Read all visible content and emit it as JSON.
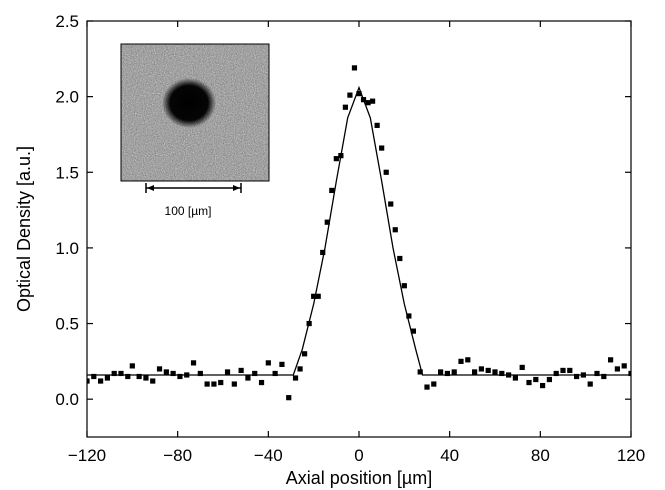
{
  "chart_data": {
    "type": "scatter",
    "title": "",
    "xlabel": "Axial position [µm]",
    "ylabel": "Optical Density [a.u.]",
    "xlim": [
      -120,
      120
    ],
    "ylim": [
      -0.25,
      2.5
    ],
    "x_ticks": [
      -120,
      -80,
      -40,
      0,
      40,
      80,
      120
    ],
    "x_tick_labels": [
      "−120",
      "−80",
      "−40",
      "0",
      "40",
      "80",
      "120"
    ],
    "y_ticks": [
      0.0,
      0.5,
      1.0,
      1.5,
      2.0,
      2.5
    ],
    "y_tick_labels": [
      "0.0",
      "0.5",
      "1.0",
      "1.5",
      "2.0",
      "2.5"
    ],
    "grid": false,
    "legend": "none",
    "series": [
      {
        "type": "scatter",
        "marker": "square",
        "color": "#000000",
        "points": [
          [
            -120,
            0.12
          ],
          [
            -117,
            0.15
          ],
          [
            -114,
            0.12
          ],
          [
            -111,
            0.14
          ],
          [
            -108,
            0.17
          ],
          [
            -105,
            0.17
          ],
          [
            -102,
            0.15
          ],
          [
            -100,
            0.22
          ],
          [
            -97,
            0.15
          ],
          [
            -94,
            0.14
          ],
          [
            -91,
            0.12
          ],
          [
            -88,
            0.2
          ],
          [
            -85,
            0.18
          ],
          [
            -82,
            0.17
          ],
          [
            -79,
            0.15
          ],
          [
            -76,
            0.16
          ],
          [
            -73,
            0.24
          ],
          [
            -70,
            0.17
          ],
          [
            -67,
            0.1
          ],
          [
            -64,
            0.1
          ],
          [
            -61,
            0.11
          ],
          [
            -58,
            0.18
          ],
          [
            -55,
            0.1
          ],
          [
            -52,
            0.19
          ],
          [
            -49,
            0.14
          ],
          [
            -46,
            0.17
          ],
          [
            -43,
            0.11
          ],
          [
            -40,
            0.24
          ],
          [
            -37,
            0.17
          ],
          [
            -34,
            0.23
          ],
          [
            -31,
            0.01
          ],
          [
            -28,
            0.14
          ],
          [
            -26,
            0.2
          ],
          [
            -24,
            0.3
          ],
          [
            -22,
            0.5
          ],
          [
            -20,
            0.68
          ],
          [
            -18,
            0.68
          ],
          [
            -16,
            0.97
          ],
          [
            -14,
            1.17
          ],
          [
            -12,
            1.38
          ],
          [
            -10,
            1.59
          ],
          [
            -8,
            1.61
          ],
          [
            -6,
            1.93
          ],
          [
            -4,
            2.01
          ],
          [
            -2,
            2.19
          ],
          [
            0,
            2.02
          ],
          [
            2,
            1.98
          ],
          [
            4,
            1.96
          ],
          [
            6,
            1.97
          ],
          [
            8,
            1.81
          ],
          [
            10,
            1.66
          ],
          [
            12,
            1.5
          ],
          [
            14,
            1.29
          ],
          [
            16,
            1.12
          ],
          [
            18,
            0.93
          ],
          [
            20,
            0.75
          ],
          [
            22,
            0.55
          ],
          [
            24,
            0.45
          ],
          [
            27,
            0.18
          ],
          [
            30,
            0.08
          ],
          [
            33,
            0.1
          ],
          [
            36,
            0.18
          ],
          [
            39,
            0.17
          ],
          [
            42,
            0.18
          ],
          [
            45,
            0.25
          ],
          [
            48,
            0.26
          ],
          [
            51,
            0.18
          ],
          [
            54,
            0.2
          ],
          [
            57,
            0.19
          ],
          [
            60,
            0.18
          ],
          [
            63,
            0.17
          ],
          [
            66,
            0.16
          ],
          [
            69,
            0.14
          ],
          [
            72,
            0.21
          ],
          [
            75,
            0.11
          ],
          [
            78,
            0.13
          ],
          [
            81,
            0.09
          ],
          [
            84,
            0.13
          ],
          [
            87,
            0.17
          ],
          [
            90,
            0.19
          ],
          [
            93,
            0.19
          ],
          [
            96,
            0.15
          ],
          [
            99,
            0.16
          ],
          [
            102,
            0.1
          ],
          [
            105,
            0.17
          ],
          [
            108,
            0.15
          ],
          [
            111,
            0.26
          ],
          [
            114,
            0.2
          ],
          [
            117,
            0.22
          ],
          [
            120,
            0.17
          ]
        ]
      },
      {
        "type": "line",
        "color": "#000000",
        "points": [
          [
            -120,
            0.16
          ],
          [
            -29,
            0.16
          ],
          [
            -25,
            0.33
          ],
          [
            -20,
            0.63
          ],
          [
            -15,
            1.0
          ],
          [
            -10,
            1.44
          ],
          [
            -5,
            1.86
          ],
          [
            0,
            2.06
          ],
          [
            5,
            1.86
          ],
          [
            10,
            1.44
          ],
          [
            15,
            1.0
          ],
          [
            20,
            0.63
          ],
          [
            25,
            0.33
          ],
          [
            28,
            0.16
          ],
          [
            120,
            0.16
          ]
        ]
      }
    ],
    "inset": {
      "scale_label": "100 [µm]"
    }
  }
}
